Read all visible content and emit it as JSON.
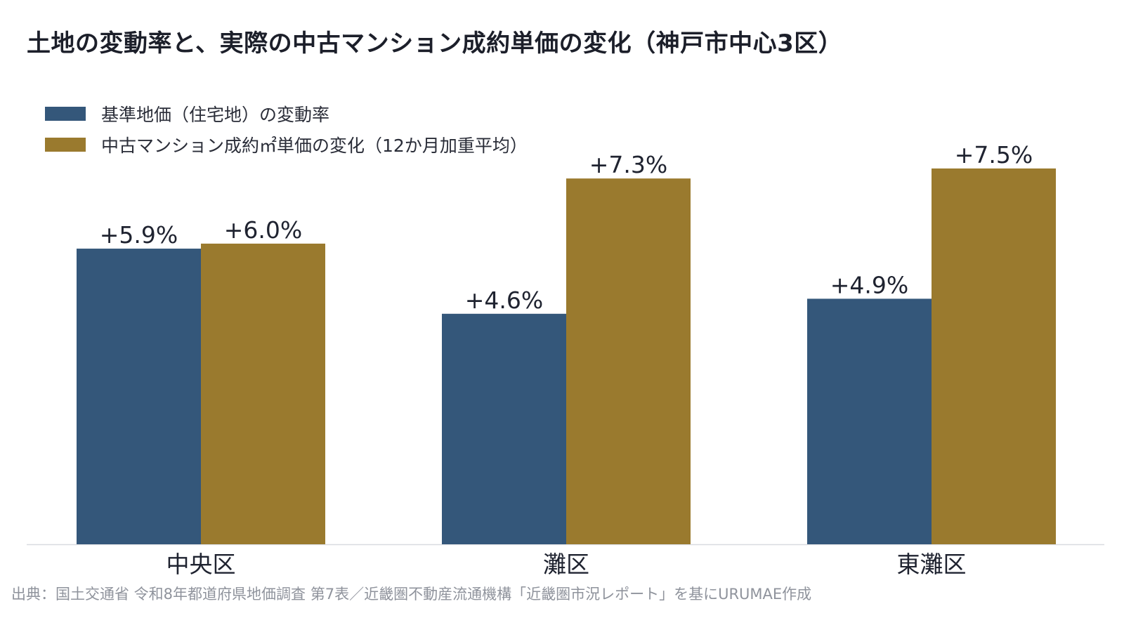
{
  "title": "土地の変動率と、実際の中古マンション成約単価の変化（神戸市中心3区）",
  "legend": [
    {
      "label": "基準地価（住宅地）の変動率",
      "color": "#34577a"
    },
    {
      "label": "中古マンション成約㎡単価の変化（12か月加重平均）",
      "color": "#9a7a2e"
    }
  ],
  "chart_data": {
    "type": "bar",
    "categories": [
      "中央区",
      "灘区",
      "東灘区"
    ],
    "series": [
      {
        "name": "基準地価（住宅地）の変動率",
        "values": [
          5.9,
          4.6,
          4.9
        ],
        "labels": [
          "+5.9%",
          "+4.6%",
          "+4.9%"
        ],
        "color": "#34577a"
      },
      {
        "name": "中古マンション成約㎡単価の変化（12か月加重平均）",
        "values": [
          6.0,
          7.3,
          7.5
        ],
        "labels": [
          "+6.0%",
          "+7.3%",
          "+7.5%"
        ],
        "color": "#9a7a2e"
      }
    ],
    "ylim": [
      0,
      8.9
    ],
    "grid": false,
    "legend_position": "top-left"
  },
  "source": "出典：国土交通省 令和8年都道府県地価調査 第7表／近畿圏不動産流通機構「近畿圏市況レポート」を基にURUMAE作成"
}
